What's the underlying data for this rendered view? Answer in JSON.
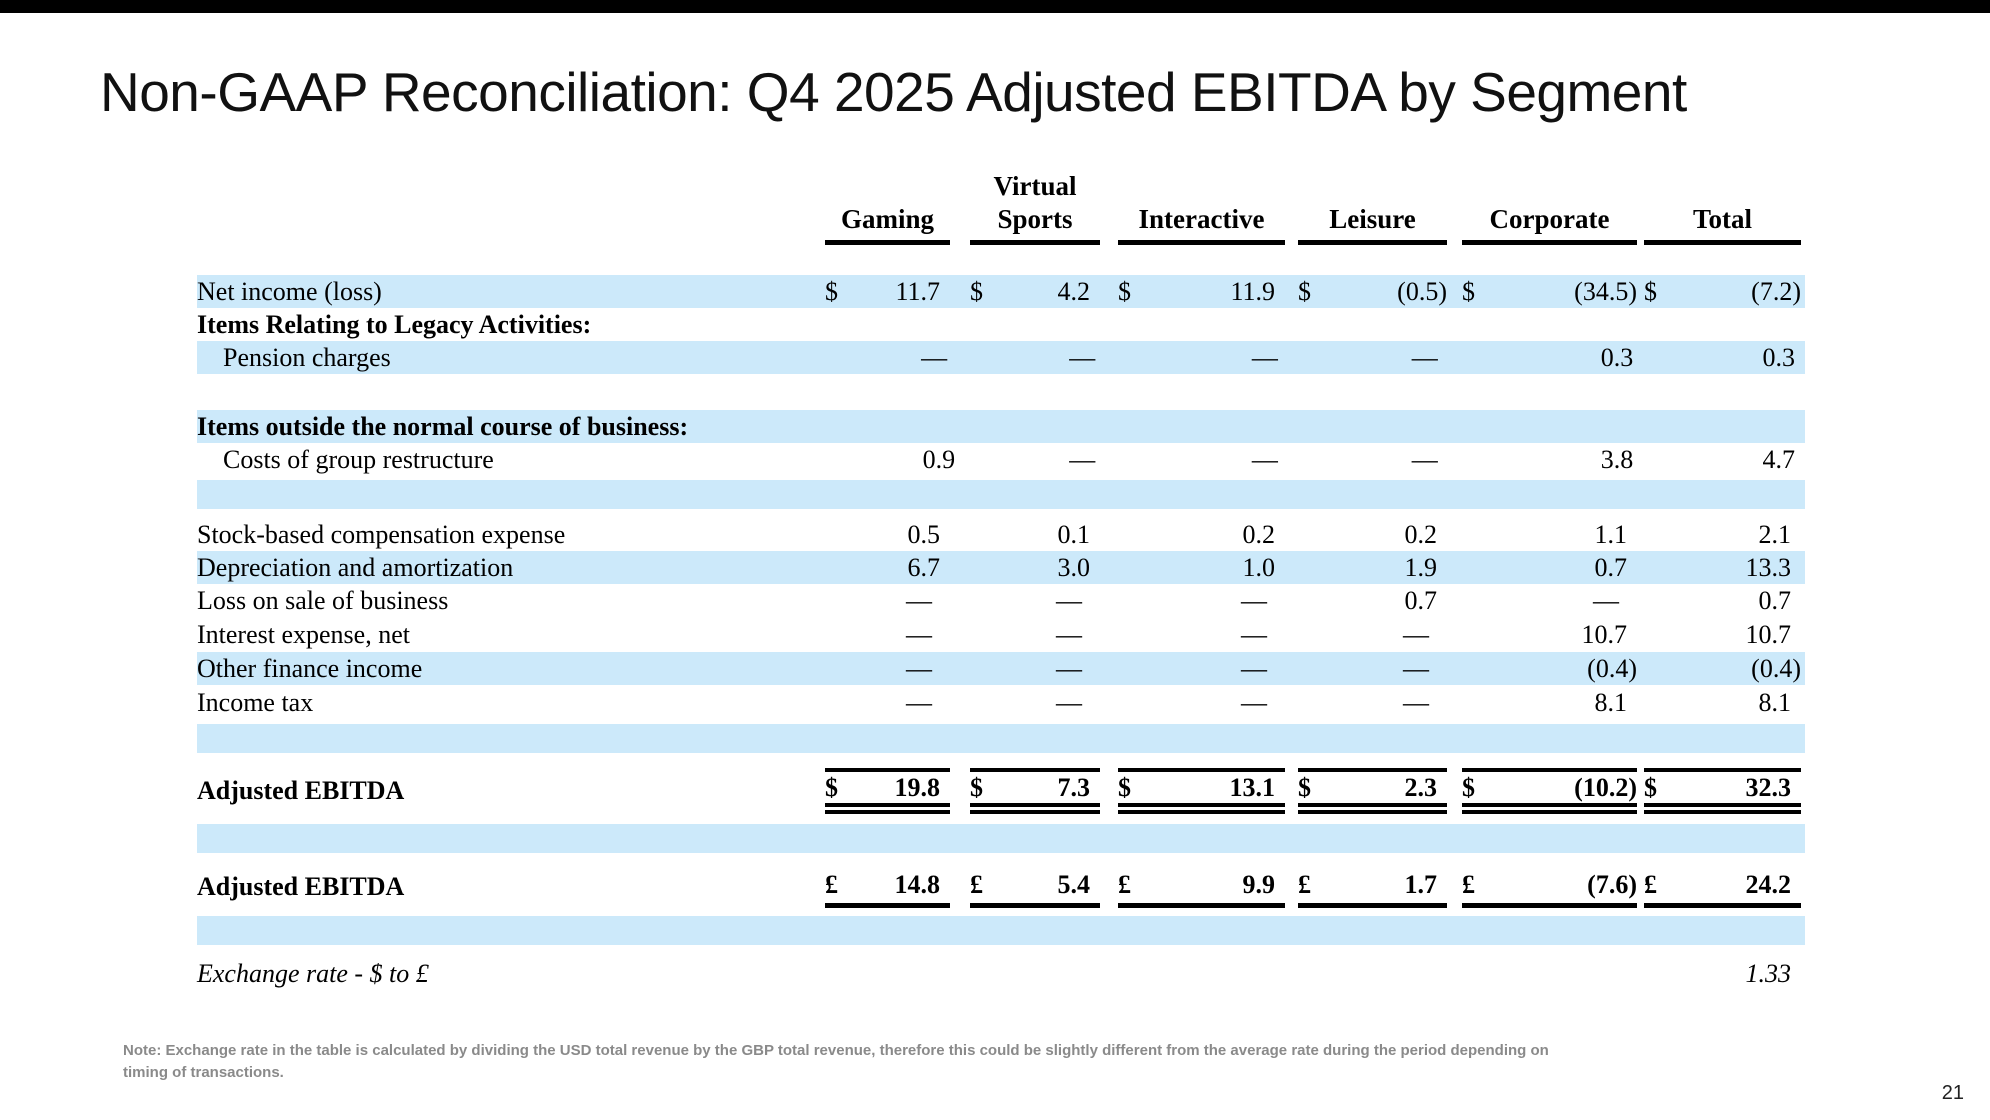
{
  "title": "Non-GAAP Reconciliation: Q4 2025 Adjusted EBITDA by Segment",
  "page_number": "21",
  "note": {
    "line1": "Note: Exchange rate in the table is calculated by dividing the USD total revenue by the GBP total revenue, therefore this could be slightly different from the average rate during the period depending on",
    "line2": "timing of transactions."
  },
  "colors": {
    "row_highlight": "#cce9fa",
    "top_bar": "#000000",
    "note_gray": "#8a8a8a"
  },
  "table": {
    "columns": [
      {
        "line1": "",
        "line2": "Gaming"
      },
      {
        "line1": "Virtual",
        "line2": "Sports"
      },
      {
        "line1": "",
        "line2": "Interactive"
      },
      {
        "line1": "",
        "line2": "Leisure"
      },
      {
        "line1": "",
        "line2": "Corporate"
      },
      {
        "line1": "",
        "line2": "Total"
      }
    ],
    "rows": [
      {
        "label": "Net income (loss)",
        "style": "highlight",
        "cells": [
          [
            "$",
            "11.7"
          ],
          [
            "$",
            "4.2"
          ],
          [
            "$",
            "11.9"
          ],
          [
            "$",
            "(0.5)"
          ],
          [
            "$",
            "(34.5)"
          ],
          [
            "$",
            "(7.2)"
          ]
        ]
      },
      {
        "label": "Items Relating to Legacy Activities:",
        "style": "section",
        "cells": []
      },
      {
        "label": "Pension charges",
        "style": "highlight indent",
        "cells": [
          [
            "",
            "—"
          ],
          [
            "",
            "—"
          ],
          [
            "",
            "—"
          ],
          [
            "",
            "—"
          ],
          [
            "",
            "0.3"
          ],
          [
            "",
            "0.3"
          ]
        ]
      },
      {
        "label": "",
        "style": "gap",
        "cells": []
      },
      {
        "label": "Items outside the normal course of business:",
        "style": "highlight section",
        "cells": []
      },
      {
        "label": "Costs of group restructure",
        "style": "indent",
        "cells": [
          [
            "",
            "0.9"
          ],
          [
            "",
            "—"
          ],
          [
            "",
            "—"
          ],
          [
            "",
            "—"
          ],
          [
            "",
            "3.8"
          ],
          [
            "",
            "4.7"
          ]
        ]
      },
      {
        "label": "",
        "style": "highlight spacer",
        "cells": []
      },
      {
        "label": "Stock-based compensation expense",
        "style": "",
        "cells": [
          [
            "",
            "0.5"
          ],
          [
            "",
            "0.1"
          ],
          [
            "",
            "0.2"
          ],
          [
            "",
            "0.2"
          ],
          [
            "",
            "1.1"
          ],
          [
            "",
            "2.1"
          ]
        ]
      },
      {
        "label": "Depreciation and amortization",
        "style": "highlight",
        "cells": [
          [
            "",
            "6.7"
          ],
          [
            "",
            "3.0"
          ],
          [
            "",
            "1.0"
          ],
          [
            "",
            "1.9"
          ],
          [
            "",
            "0.7"
          ],
          [
            "",
            "13.3"
          ]
        ]
      },
      {
        "label": "Loss on sale of business",
        "style": "",
        "cells": [
          [
            "",
            "—"
          ],
          [
            "",
            "—"
          ],
          [
            "",
            "—"
          ],
          [
            "",
            "0.7"
          ],
          [
            "",
            "—"
          ],
          [
            "",
            "0.7"
          ]
        ]
      },
      {
        "label": "Interest expense, net",
        "style": "tall",
        "cells": [
          [
            "",
            "—"
          ],
          [
            "",
            "—"
          ],
          [
            "",
            "—"
          ],
          [
            "",
            "—"
          ],
          [
            "",
            "10.7"
          ],
          [
            "",
            "10.7"
          ]
        ]
      },
      {
        "label": "Other finance income",
        "style": "highlight",
        "cells": [
          [
            "",
            "—"
          ],
          [
            "",
            "—"
          ],
          [
            "",
            "—"
          ],
          [
            "",
            "—"
          ],
          [
            "",
            "(0.4)"
          ],
          [
            "",
            "(0.4)"
          ]
        ]
      },
      {
        "label": "Income tax",
        "style": "tall",
        "cells": [
          [
            "",
            "—"
          ],
          [
            "",
            "—"
          ],
          [
            "",
            "—"
          ],
          [
            "",
            "—"
          ],
          [
            "",
            "8.1"
          ],
          [
            "",
            "8.1"
          ]
        ]
      },
      {
        "label": "",
        "style": "highlight spacer",
        "cells": []
      },
      {
        "label": "Adjusted EBITDA",
        "style": "usd section",
        "cells": [
          [
            "$",
            "19.8"
          ],
          [
            "$",
            "7.3"
          ],
          [
            "$",
            "13.1"
          ],
          [
            "$",
            "2.3"
          ],
          [
            "$",
            "(10.2)"
          ],
          [
            "$",
            "32.3"
          ]
        ]
      },
      {
        "label": "",
        "style": "highlight spacer",
        "cells": []
      },
      {
        "label": "Adjusted EBITDA",
        "style": "gbp section",
        "cells": [
          [
            "£",
            "14.8"
          ],
          [
            "£",
            "5.4"
          ],
          [
            "£",
            "9.9"
          ],
          [
            "£",
            "1.7"
          ],
          [
            "£",
            "(7.6)"
          ],
          [
            "£",
            "24.2"
          ]
        ]
      },
      {
        "label": "",
        "style": "highlight spacer",
        "cells": []
      },
      {
        "label": "Exchange rate - $ to £",
        "style": "exchange",
        "cells": [
          [
            "",
            ""
          ],
          [
            "",
            ""
          ],
          [
            "",
            ""
          ],
          [
            "",
            ""
          ],
          [
            "",
            ""
          ],
          [
            "",
            "1.33"
          ]
        ]
      }
    ]
  }
}
